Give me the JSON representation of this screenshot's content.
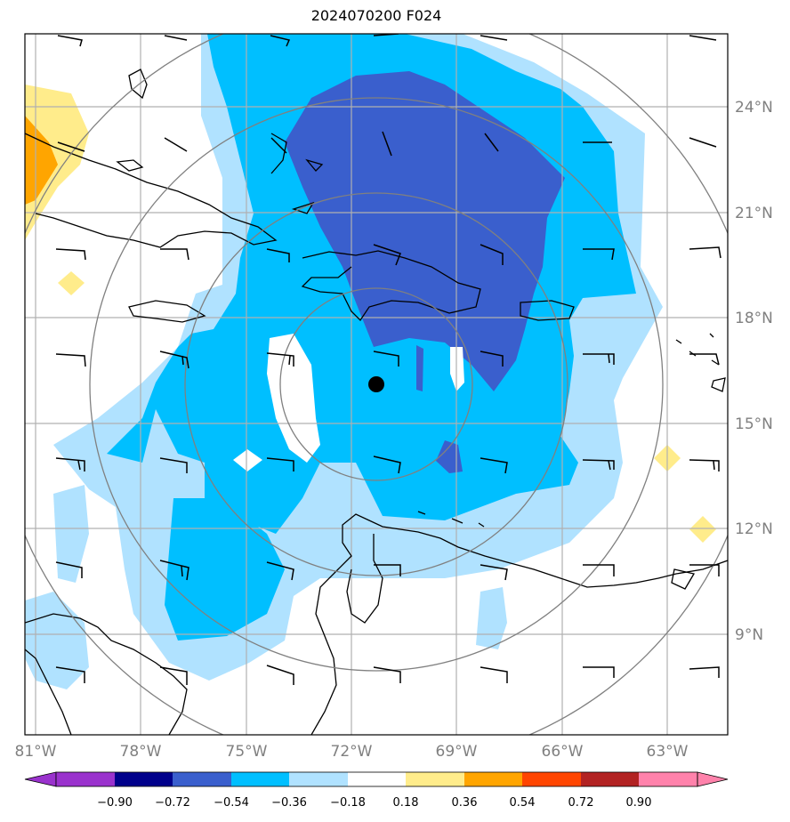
{
  "title": "2024070200 F024",
  "map": {
    "projection": "lat-lon",
    "extent": {
      "lon_min": -81.3,
      "lon_max": -61.2,
      "lat_min": 6.0,
      "lat_max": 26.0
    },
    "lat_ticks": [
      {
        "value": 24,
        "label": "24°N"
      },
      {
        "value": 21,
        "label": "21°N"
      },
      {
        "value": 18,
        "label": "18°N"
      },
      {
        "value": 15,
        "label": "15°N"
      },
      {
        "value": 12,
        "label": "12°N"
      },
      {
        "value": 9,
        "label": "9°N"
      }
    ],
    "lon_ticks": [
      {
        "value": -81,
        "label": "81°W"
      },
      {
        "value": -78,
        "label": "78°W"
      },
      {
        "value": -75,
        "label": "75°W"
      },
      {
        "value": -72,
        "label": "72°W"
      },
      {
        "value": -69,
        "label": "69°W"
      },
      {
        "value": -66,
        "label": "66°W"
      },
      {
        "value": -63,
        "label": "63°W"
      }
    ],
    "center_marker": {
      "lon": -71.3,
      "lat": 16.1
    },
    "range_rings_deg": [
      2.75,
      5.5,
      8.25,
      11.0
    ],
    "grid": true
  },
  "colorbar": {
    "ticks": [
      "−0.90",
      "−0.72",
      "−0.54",
      "−0.36",
      "−0.18",
      "0.18",
      "0.36",
      "0.54",
      "0.72",
      "0.90"
    ],
    "colors": [
      "#9a32cd",
      "#00008b",
      "#3a5fcd",
      "#00bfff",
      "#b0e2ff",
      "#ffffff",
      "#ffec8b",
      "#ffa500",
      "#ff4500",
      "#b22222",
      "#ff82ab"
    ],
    "extend": "both"
  },
  "colors": {
    "grid": "#b0b0b0",
    "rings": "#808080",
    "coast": "#000000",
    "axis_text": "#808080"
  }
}
